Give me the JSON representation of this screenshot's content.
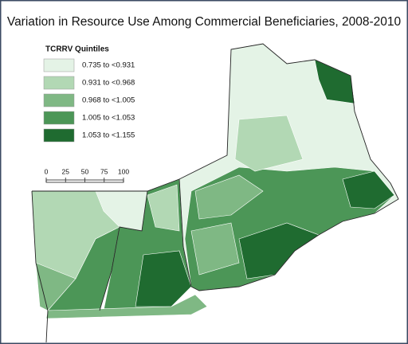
{
  "title": "Variation in Resource Use Among Commercial Beneficiaries, 2008-2010",
  "legend": {
    "title": "TCRRV Quintiles",
    "items": [
      {
        "label": "0.735 to <0.931",
        "color": "#e4f3e6"
      },
      {
        "label": "0.931 to <0.968",
        "color": "#b2d8b4"
      },
      {
        "label": "0.968 to <1.005",
        "color": "#7fb884"
      },
      {
        "label": "1.005 to <1.053",
        "color": "#4c9657"
      },
      {
        "label": "1.053 to <1.155",
        "color": "#1f6b30"
      }
    ]
  },
  "scale_bar": {
    "ticks": [
      0,
      25,
      50,
      75,
      100
    ]
  }
}
